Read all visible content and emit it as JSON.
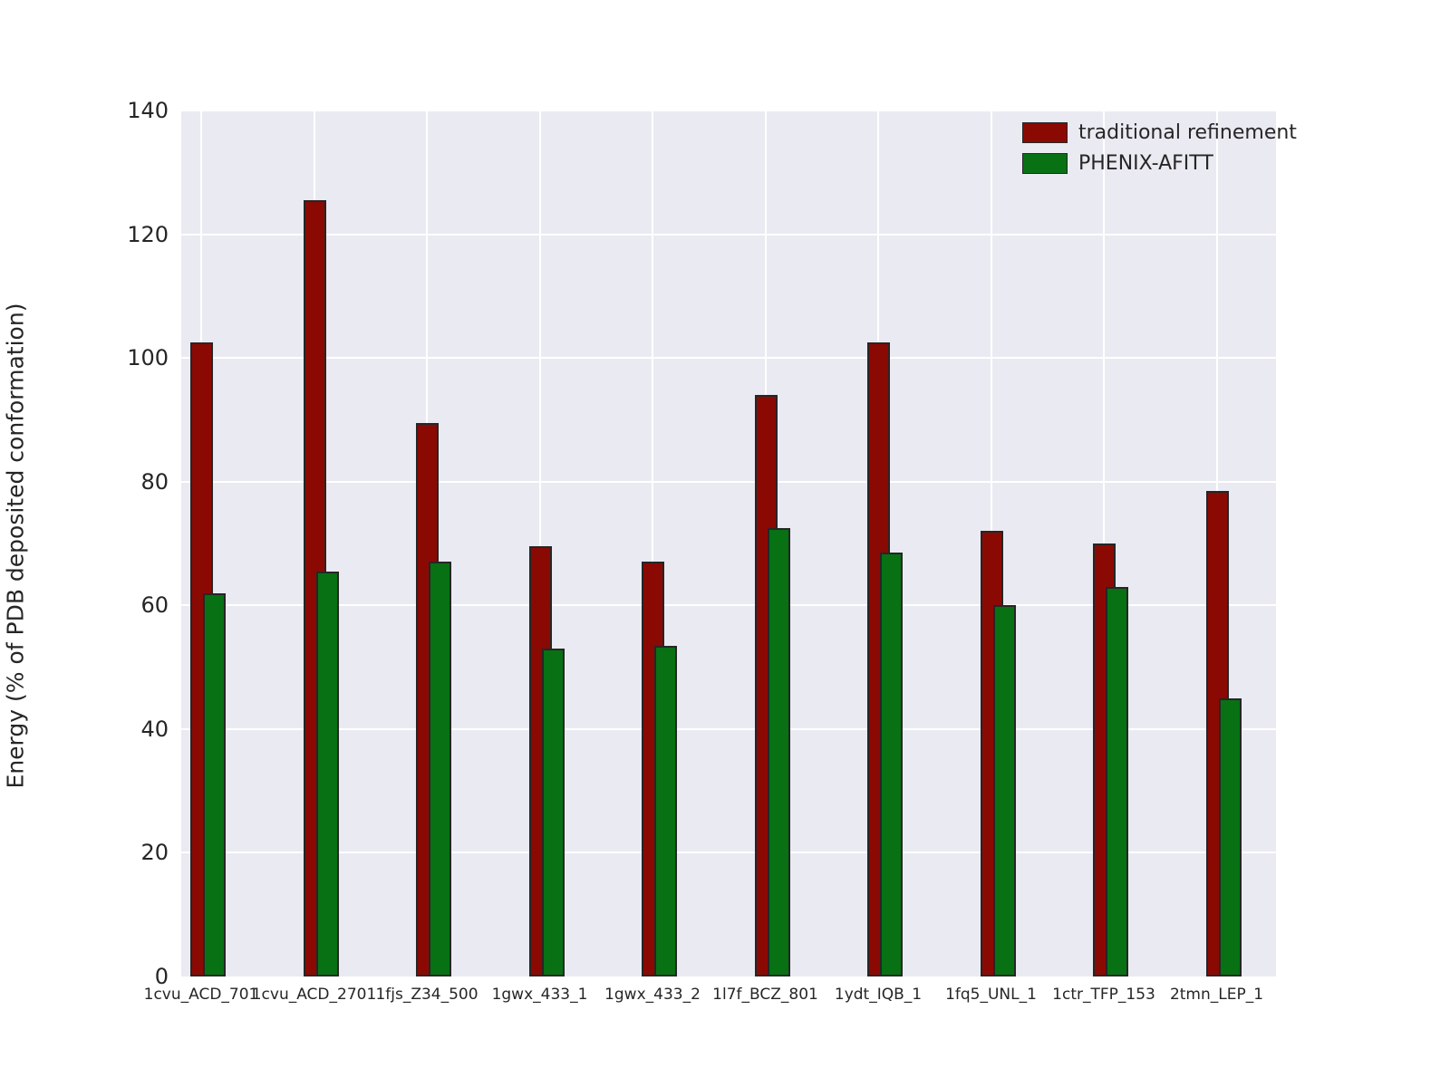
{
  "figure": {
    "background": "#ffffff"
  },
  "chart_data": {
    "type": "bar",
    "title": "",
    "xlabel": "",
    "ylabel": "Energy (% of PDB deposited conformation)",
    "ylim": [
      0,
      140
    ],
    "yticks": [
      0,
      20,
      40,
      60,
      80,
      100,
      120,
      140
    ],
    "grid": true,
    "legend_position": "upper right",
    "plot_background": "#eaeaf2",
    "grid_color": "#ffffff",
    "text_color": "#262626",
    "bar_edge_color": "#262626",
    "categories": [
      "1cvu_ACD_701",
      "1cvu_ACD_2701",
      "1fjs_Z34_500",
      "1gwx_433_1",
      "1gwx_433_2",
      "1l7f_BCZ_801",
      "1ydt_IQB_1",
      "1fq5_UNL_1",
      "1ctr_TFP_153",
      "2tmn_LEP_1"
    ],
    "series": [
      {
        "name": "traditional refinement",
        "color": "#8b0903",
        "values": [
          102.5,
          125.5,
          89.5,
          69.5,
          67,
          94,
          102.5,
          72,
          70,
          78.5
        ]
      },
      {
        "name": "PHENIX-AFITT",
        "color": "#077114",
        "values": [
          62,
          65.5,
          67,
          53,
          53.5,
          72.5,
          68.5,
          60,
          63,
          45
        ]
      }
    ]
  }
}
